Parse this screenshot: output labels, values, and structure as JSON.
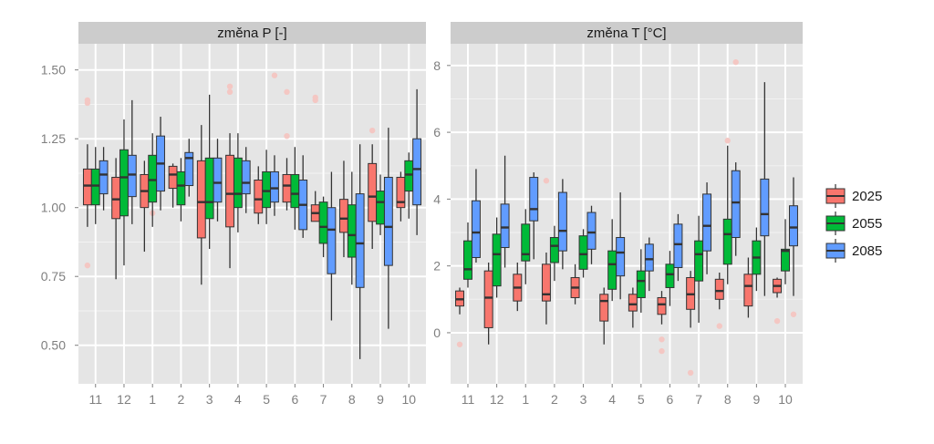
{
  "colors": {
    "panel_bg": "#e5e5e5",
    "grid_major": "#ffffff",
    "grid_minor": "#f2f2f2",
    "strip_bg": "#cccccc",
    "2025": "#f8766d",
    "2055": "#00ba38",
    "2085": "#619cff",
    "outlier": "#f4c7c3"
  },
  "chart_data": [
    {
      "type": "boxplot",
      "title": "změna P [-]",
      "xlabel": "",
      "ylabel": "",
      "categories": [
        "11",
        "12",
        "1",
        "2",
        "3",
        "4",
        "5",
        "6",
        "7",
        "8",
        "9",
        "10"
      ],
      "ylim": [
        0.36,
        1.595
      ],
      "yticks": [
        0.5,
        0.75,
        1.0,
        1.25,
        1.5
      ],
      "ytick_labels": [
        "0.50",
        "0.75",
        "1.00",
        "1.25",
        "1.50"
      ],
      "grid": true,
      "series": [
        {
          "name": "2025",
          "boxes": [
            {
              "min": 0.93,
              "q1": 1.01,
              "median": 1.08,
              "q3": 1.14,
              "max": 1.23
            },
            {
              "min": 0.74,
              "q1": 0.96,
              "median": 1.03,
              "q3": 1.11,
              "max": 1.18
            },
            {
              "min": 0.84,
              "q1": 1.0,
              "median": 1.06,
              "q3": 1.12,
              "max": 1.17
            },
            {
              "min": 1.0,
              "q1": 1.07,
              "median": 1.12,
              "q3": 1.15,
              "max": 1.16
            },
            {
              "min": 0.72,
              "q1": 0.89,
              "median": 1.02,
              "q3": 1.17,
              "max": 1.3
            },
            {
              "min": 0.78,
              "q1": 0.93,
              "median": 1.05,
              "q3": 1.19,
              "max": 1.27
            },
            {
              "min": 0.94,
              "q1": 0.98,
              "median": 1.03,
              "q3": 1.1,
              "max": 1.15
            },
            {
              "min": 0.99,
              "q1": 1.02,
              "median": 1.08,
              "q3": 1.12,
              "max": 1.18
            },
            {
              "min": 0.95,
              "q1": 0.95,
              "median": 0.98,
              "q3": 1.01,
              "max": 1.06
            },
            {
              "min": 0.82,
              "q1": 0.91,
              "median": 0.96,
              "q3": 1.03,
              "max": 1.17
            },
            {
              "min": 0.85,
              "q1": 0.95,
              "median": 1.04,
              "q3": 1.16,
              "max": 1.23
            },
            {
              "min": 0.95,
              "q1": 1.0,
              "median": 1.02,
              "q3": 1.11,
              "max": 1.13
            }
          ],
          "outliers": [
            {
              "cat": "11",
              "y": 1.38
            },
            {
              "cat": "11",
              "y": 1.39
            },
            {
              "cat": "11",
              "y": 0.79
            },
            {
              "cat": "4",
              "y": 1.42
            },
            {
              "cat": "4",
              "y": 1.44
            },
            {
              "cat": "6",
              "y": 1.42
            },
            {
              "cat": "6",
              "y": 1.26
            },
            {
              "cat": "7",
              "y": 1.39
            },
            {
              "cat": "7",
              "y": 1.4
            },
            {
              "cat": "9",
              "y": 1.28
            }
          ]
        },
        {
          "name": "2055",
          "boxes": [
            {
              "min": 0.94,
              "q1": 1.01,
              "median": 1.08,
              "q3": 1.14,
              "max": 1.22
            },
            {
              "min": 0.79,
              "q1": 0.97,
              "median": 1.11,
              "q3": 1.21,
              "max": 1.32
            },
            {
              "min": 0.93,
              "q1": 1.02,
              "median": 1.1,
              "q3": 1.19,
              "max": 1.27
            },
            {
              "min": 0.95,
              "q1": 1.01,
              "median": 1.08,
              "q3": 1.13,
              "max": 1.18
            },
            {
              "min": 0.85,
              "q1": 0.96,
              "median": 1.02,
              "q3": 1.18,
              "max": 1.41
            },
            {
              "min": 0.91,
              "q1": 1.0,
              "median": 1.05,
              "q3": 1.18,
              "max": 1.27
            },
            {
              "min": 0.94,
              "q1": 1.0,
              "median": 1.06,
              "q3": 1.13,
              "max": 1.21
            },
            {
              "min": 0.92,
              "q1": 1.0,
              "median": 1.05,
              "q3": 1.12,
              "max": 1.22
            },
            {
              "min": 0.82,
              "q1": 0.87,
              "median": 0.93,
              "q3": 1.02,
              "max": 1.04
            },
            {
              "min": 0.72,
              "q1": 0.82,
              "median": 0.9,
              "q3": 1.01,
              "max": 1.13
            },
            {
              "min": 0.9,
              "q1": 0.94,
              "median": 1.02,
              "q3": 1.06,
              "max": 1.12
            },
            {
              "min": 0.96,
              "q1": 1.06,
              "median": 1.12,
              "q3": 1.17,
              "max": 1.2
            }
          ],
          "outliers": [
            {
              "cat": "1",
              "y": 0.98
            }
          ]
        },
        {
          "name": "2085",
          "boxes": [
            {
              "min": 0.99,
              "q1": 1.05,
              "median": 1.12,
              "q3": 1.17,
              "max": 1.22
            },
            {
              "min": 0.94,
              "q1": 1.04,
              "median": 1.12,
              "q3": 1.19,
              "max": 1.39
            },
            {
              "min": 0.99,
              "q1": 1.06,
              "median": 1.16,
              "q3": 1.26,
              "max": 1.33
            },
            {
              "min": 1.04,
              "q1": 1.08,
              "median": 1.18,
              "q3": 1.2,
              "max": 1.25
            },
            {
              "min": 0.95,
              "q1": 1.02,
              "median": 1.09,
              "q3": 1.18,
              "max": 1.25
            },
            {
              "min": 0.98,
              "q1": 1.05,
              "median": 1.09,
              "q3": 1.17,
              "max": 1.22
            },
            {
              "min": 0.97,
              "q1": 1.02,
              "median": 1.07,
              "q3": 1.13,
              "max": 1.19
            },
            {
              "min": 0.89,
              "q1": 0.92,
              "median": 1.01,
              "q3": 1.1,
              "max": 1.19
            },
            {
              "min": 0.59,
              "q1": 0.76,
              "median": 0.92,
              "q3": 1.0,
              "max": 1.13
            },
            {
              "min": 0.45,
              "q1": 0.71,
              "median": 0.87,
              "q3": 1.05,
              "max": 1.23
            },
            {
              "min": 0.56,
              "q1": 0.79,
              "median": 0.93,
              "q3": 1.11,
              "max": 1.29
            },
            {
              "min": 0.9,
              "q1": 1.01,
              "median": 1.14,
              "q3": 1.25,
              "max": 1.43
            }
          ],
          "outliers": [
            {
              "cat": "5",
              "y": 1.48
            }
          ]
        }
      ]
    },
    {
      "type": "boxplot",
      "title": "změna T [°C]",
      "xlabel": "",
      "ylabel": "",
      "categories": [
        "11",
        "12",
        "1",
        "2",
        "3",
        "4",
        "5",
        "6",
        "7",
        "8",
        "9",
        "10"
      ],
      "ylim": [
        -1.53,
        8.65
      ],
      "yticks": [
        0,
        2,
        4,
        6,
        8
      ],
      "ytick_labels": [
        "0",
        "2",
        "4",
        "6",
        "8"
      ],
      "grid": true,
      "series": [
        {
          "name": "2025",
          "boxes": [
            {
              "min": 0.55,
              "q1": 0.8,
              "median": 1.0,
              "q3": 1.25,
              "max": 1.35
            },
            {
              "min": -0.35,
              "q1": 0.15,
              "median": 1.05,
              "q3": 1.85,
              "max": 2.1
            },
            {
              "min": 0.65,
              "q1": 0.95,
              "median": 1.35,
              "q3": 1.75,
              "max": 2.1
            },
            {
              "min": 0.25,
              "q1": 0.95,
              "median": 1.15,
              "q3": 2.05,
              "max": 2.4
            },
            {
              "min": 0.85,
              "q1": 1.05,
              "median": 1.35,
              "q3": 1.65,
              "max": 2.05
            },
            {
              "min": -0.35,
              "q1": 0.35,
              "median": 0.95,
              "q3": 1.15,
              "max": 1.35
            },
            {
              "min": 0.15,
              "q1": 0.65,
              "median": 0.85,
              "q3": 1.15,
              "max": 1.35
            },
            {
              "min": 0.25,
              "q1": 0.55,
              "median": 0.85,
              "q3": 1.05,
              "max": 1.25
            },
            {
              "min": 0.15,
              "q1": 0.7,
              "median": 1.15,
              "q3": 1.65,
              "max": 1.85
            },
            {
              "min": 0.7,
              "q1": 1.0,
              "median": 1.25,
              "q3": 1.6,
              "max": 1.8
            },
            {
              "min": 0.45,
              "q1": 0.8,
              "median": 1.4,
              "q3": 1.75,
              "max": 2.25
            },
            {
              "min": 1.05,
              "q1": 1.2,
              "median": 1.4,
              "q3": 1.6,
              "max": 1.65
            }
          ],
          "outliers": [
            {
              "cat": "11",
              "y": -0.35
            },
            {
              "cat": "2",
              "y": 4.55
            },
            {
              "cat": "6",
              "y": -0.55
            },
            {
              "cat": "6",
              "y": -0.2
            },
            {
              "cat": "7",
              "y": -1.2
            },
            {
              "cat": "8",
              "y": 0.2
            },
            {
              "cat": "10",
              "y": 0.35
            }
          ]
        },
        {
          "name": "2055",
          "boxes": [
            {
              "min": 1.35,
              "q1": 1.6,
              "median": 1.9,
              "q3": 2.75,
              "max": 3.3
            },
            {
              "min": 1.05,
              "q1": 1.4,
              "median": 2.35,
              "q3": 2.95,
              "max": 3.45
            },
            {
              "min": 1.45,
              "q1": 2.15,
              "median": 2.35,
              "q3": 3.25,
              "max": 3.7
            },
            {
              "min": 1.55,
              "q1": 2.1,
              "median": 2.6,
              "q3": 2.85,
              "max": 3.2
            },
            {
              "min": 1.65,
              "q1": 1.9,
              "median": 2.35,
              "q3": 2.9,
              "max": 3.1
            },
            {
              "min": 0.95,
              "q1": 1.3,
              "median": 2.05,
              "q3": 2.45,
              "max": 3.4
            },
            {
              "min": 0.6,
              "q1": 1.05,
              "median": 1.55,
              "q3": 1.85,
              "max": 2.5
            },
            {
              "min": 0.8,
              "q1": 1.35,
              "median": 1.75,
              "q3": 2.05,
              "max": 2.45
            },
            {
              "min": 0.3,
              "q1": 1.55,
              "median": 2.35,
              "q3": 2.75,
              "max": 3.5
            },
            {
              "min": 1.45,
              "q1": 2.05,
              "median": 2.95,
              "q3": 3.4,
              "max": 5.6
            },
            {
              "min": 1.25,
              "q1": 1.75,
              "median": 2.25,
              "q3": 2.75,
              "max": 3.15
            },
            {
              "min": 1.45,
              "q1": 1.85,
              "median": 2.45,
              "q3": 2.5,
              "max": 3.4
            }
          ],
          "outliers": [
            {
              "cat": "8",
              "y": 5.75
            }
          ]
        },
        {
          "name": "2085",
          "boxes": [
            {
              "min": 2.1,
              "q1": 2.25,
              "median": 3.0,
              "q3": 3.95,
              "max": 4.9
            },
            {
              "min": 1.95,
              "q1": 2.55,
              "median": 3.15,
              "q3": 3.85,
              "max": 5.3
            },
            {
              "min": 2.2,
              "q1": 3.35,
              "median": 3.7,
              "q3": 4.65,
              "max": 4.8
            },
            {
              "min": 1.9,
              "q1": 2.45,
              "median": 3.05,
              "q3": 4.2,
              "max": 4.6
            },
            {
              "min": 2.05,
              "q1": 2.5,
              "median": 3.0,
              "q3": 3.6,
              "max": 3.8
            },
            {
              "min": 1.0,
              "q1": 1.7,
              "median": 2.4,
              "q3": 2.85,
              "max": 4.2
            },
            {
              "min": 1.25,
              "q1": 1.85,
              "median": 2.2,
              "q3": 2.65,
              "max": 2.85
            },
            {
              "min": 1.55,
              "q1": 1.95,
              "median": 2.65,
              "q3": 3.25,
              "max": 3.55
            },
            {
              "min": 1.75,
              "q1": 2.45,
              "median": 3.2,
              "q3": 4.15,
              "max": 4.5
            },
            {
              "min": 2.3,
              "q1": 2.85,
              "median": 3.9,
              "q3": 4.85,
              "max": 5.1
            },
            {
              "min": 1.1,
              "q1": 2.9,
              "median": 3.55,
              "q3": 4.6,
              "max": 7.5
            },
            {
              "min": 1.1,
              "q1": 2.6,
              "median": 3.15,
              "q3": 3.8,
              "max": 4.65
            }
          ],
          "outliers": [
            {
              "cat": "8",
              "y": 8.1
            },
            {
              "cat": "10",
              "y": 0.55
            }
          ]
        }
      ]
    }
  ],
  "legend": {
    "placement": "right",
    "items": [
      {
        "label": "2025",
        "color": "#f8766d"
      },
      {
        "label": "2055",
        "color": "#00ba38"
      },
      {
        "label": "2085",
        "color": "#619cff"
      }
    ]
  }
}
